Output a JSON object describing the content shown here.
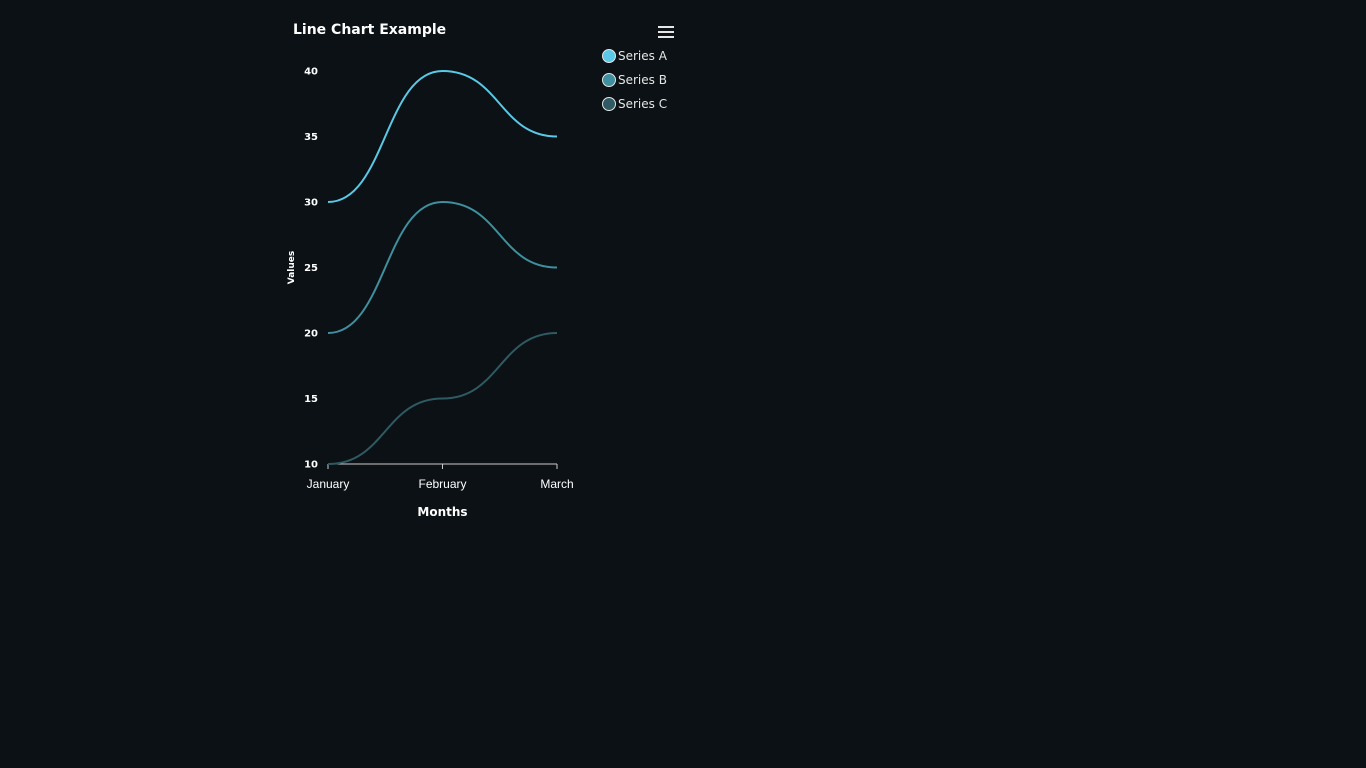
{
  "chart_data": {
    "type": "line",
    "title": "Line Chart Example",
    "xlabel": "Months",
    "ylabel": "Values",
    "categories": [
      "January",
      "February",
      "March"
    ],
    "series": [
      {
        "name": "Series A",
        "values": [
          30,
          40,
          35
        ],
        "color": "#5ac8e6"
      },
      {
        "name": "Series B",
        "values": [
          20,
          30,
          25
        ],
        "color": "#3f8f9f"
      },
      {
        "name": "Series C",
        "values": [
          10,
          15,
          20
        ],
        "color": "#2f5a63"
      }
    ],
    "ylim": [
      10,
      40
    ],
    "yticks": [
      10,
      15,
      20,
      25,
      30,
      35,
      40
    ],
    "grid": false,
    "legend_position": "top-right",
    "curve": "smooth"
  },
  "toolbar": {
    "menu_icon": "hamburger-menu-icon"
  },
  "colors": {
    "background": "#0b1114",
    "axis": "#cccccc",
    "text": "#ffffff"
  }
}
